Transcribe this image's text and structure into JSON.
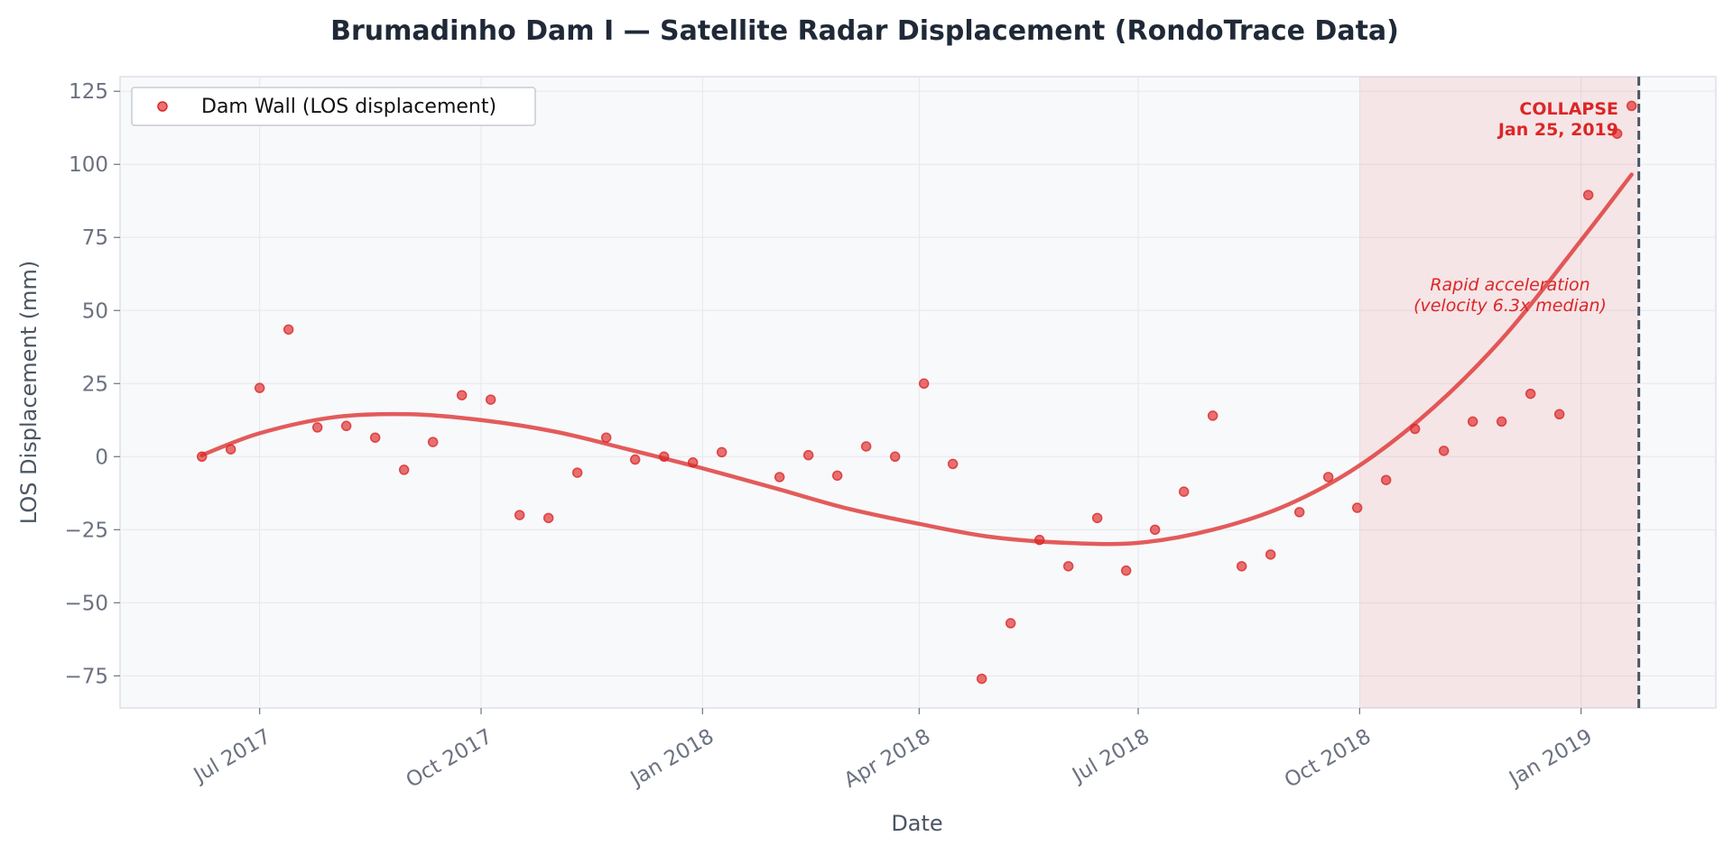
{
  "chart_data": {
    "type": "scatter",
    "title": "Brumadinho Dam I — Satellite Radar Displacement (RondoTrace Data)",
    "xlabel": "Date",
    "ylabel": "LOS Displacement (mm)",
    "x_ticks": [
      "2017-07-01",
      "2017-10-01",
      "2018-01-01",
      "2018-04-01",
      "2018-07-01",
      "2018-10-01",
      "2019-01-01"
    ],
    "x_tick_labels": [
      "Jul 2017",
      "Oct 2017",
      "Jan 2018",
      "Apr 2018",
      "Jul 2018",
      "Oct 2018",
      "Jan 2019"
    ],
    "xlim": [
      "2017-05-04",
      "2019-02-26"
    ],
    "ylim": [
      -86,
      130
    ],
    "y_ticks": [
      125,
      100,
      75,
      50,
      25,
      0,
      -25,
      -50,
      -75
    ],
    "y_tick_labels": [
      "125",
      "100",
      "75",
      "50",
      "25",
      "0",
      "−25",
      "−50",
      "−75"
    ],
    "grid": true,
    "legend_position": "top-left",
    "series": [
      {
        "name": "Dam Wall (LOS displacement)",
        "kind": "scatter",
        "color": "#dc2626",
        "points": [
          {
            "x": "2017-06-07",
            "y": 0
          },
          {
            "x": "2017-06-19",
            "y": 2.5
          },
          {
            "x": "2017-07-01",
            "y": 23.5
          },
          {
            "x": "2017-07-13",
            "y": 43.5
          },
          {
            "x": "2017-07-25",
            "y": 10
          },
          {
            "x": "2017-08-06",
            "y": 10.5
          },
          {
            "x": "2017-08-18",
            "y": 6.5
          },
          {
            "x": "2017-08-30",
            "y": -4.5
          },
          {
            "x": "2017-09-11",
            "y": 5
          },
          {
            "x": "2017-09-23",
            "y": 21
          },
          {
            "x": "2017-10-05",
            "y": 19.5
          },
          {
            "x": "2017-10-17",
            "y": -20
          },
          {
            "x": "2017-10-29",
            "y": -21
          },
          {
            "x": "2017-11-10",
            "y": -5.5
          },
          {
            "x": "2017-11-22",
            "y": 6.5
          },
          {
            "x": "2017-12-04",
            "y": -1
          },
          {
            "x": "2017-12-16",
            "y": 0
          },
          {
            "x": "2017-12-28",
            "y": -2
          },
          {
            "x": "2018-01-09",
            "y": 1.5
          },
          {
            "x": "2018-02-02",
            "y": -7
          },
          {
            "x": "2018-02-14",
            "y": 0.5
          },
          {
            "x": "2018-02-26",
            "y": -6.5
          },
          {
            "x": "2018-03-10",
            "y": 3.5
          },
          {
            "x": "2018-03-22",
            "y": 0
          },
          {
            "x": "2018-04-03",
            "y": 25
          },
          {
            "x": "2018-04-15",
            "y": -2.5
          },
          {
            "x": "2018-04-27",
            "y": -76
          },
          {
            "x": "2018-05-09",
            "y": -57
          },
          {
            "x": "2018-05-21",
            "y": -28.5
          },
          {
            "x": "2018-06-02",
            "y": -37.5
          },
          {
            "x": "2018-06-14",
            "y": -21
          },
          {
            "x": "2018-06-26",
            "y": -39
          },
          {
            "x": "2018-07-08",
            "y": -25
          },
          {
            "x": "2018-07-20",
            "y": -12
          },
          {
            "x": "2018-08-01",
            "y": 14
          },
          {
            "x": "2018-08-13",
            "y": -37.5
          },
          {
            "x": "2018-08-25",
            "y": -33.5
          },
          {
            "x": "2018-09-06",
            "y": -19
          },
          {
            "x": "2018-09-18",
            "y": -7
          },
          {
            "x": "2018-09-30",
            "y": -17.5
          },
          {
            "x": "2018-10-12",
            "y": -8
          },
          {
            "x": "2018-10-24",
            "y": 9.5
          },
          {
            "x": "2018-11-05",
            "y": 2
          },
          {
            "x": "2018-11-17",
            "y": 12
          },
          {
            "x": "2018-11-29",
            "y": 12
          },
          {
            "x": "2018-12-11",
            "y": 21.5
          },
          {
            "x": "2018-12-23",
            "y": 14.5
          },
          {
            "x": "2019-01-04",
            "y": 89.5
          },
          {
            "x": "2019-01-16",
            "y": 110.5
          },
          {
            "x": "2019-01-22",
            "y": 120
          }
        ]
      },
      {
        "kind": "trend",
        "color": "#dc2626",
        "points": [
          {
            "x": "2017-06-07",
            "y": 0.5
          },
          {
            "x": "2017-07-01",
            "y": 8
          },
          {
            "x": "2017-08-01",
            "y": 13.5
          },
          {
            "x": "2017-09-01",
            "y": 14.5
          },
          {
            "x": "2017-10-01",
            "y": 12.5
          },
          {
            "x": "2017-11-01",
            "y": 8.5
          },
          {
            "x": "2017-12-01",
            "y": 2.5
          },
          {
            "x": "2018-01-01",
            "y": -4
          },
          {
            "x": "2018-02-01",
            "y": -11
          },
          {
            "x": "2018-03-01",
            "y": -17.5
          },
          {
            "x": "2018-04-01",
            "y": -23
          },
          {
            "x": "2018-05-01",
            "y": -27.5
          },
          {
            "x": "2018-06-01",
            "y": -29.5
          },
          {
            "x": "2018-07-01",
            "y": -29.5
          },
          {
            "x": "2018-08-01",
            "y": -25
          },
          {
            "x": "2018-09-01",
            "y": -16.5
          },
          {
            "x": "2018-10-01",
            "y": -3
          },
          {
            "x": "2018-11-01",
            "y": 17
          },
          {
            "x": "2018-12-01",
            "y": 42
          },
          {
            "x": "2019-01-01",
            "y": 74
          },
          {
            "x": "2019-01-22",
            "y": 96.5
          }
        ]
      }
    ],
    "shaded_region": {
      "x_start": "2018-10-01",
      "x_end": "2019-01-25",
      "color": "#dc2626"
    },
    "vline": {
      "x": "2019-01-25",
      "color": "#4b5563"
    },
    "annotations": {
      "collapse_line1": "COLLAPSE",
      "collapse_line2": "Jan 25, 2019",
      "accel_line1": "Rapid acceleration",
      "accel_line2": "(velocity 6.3x median)"
    }
  }
}
